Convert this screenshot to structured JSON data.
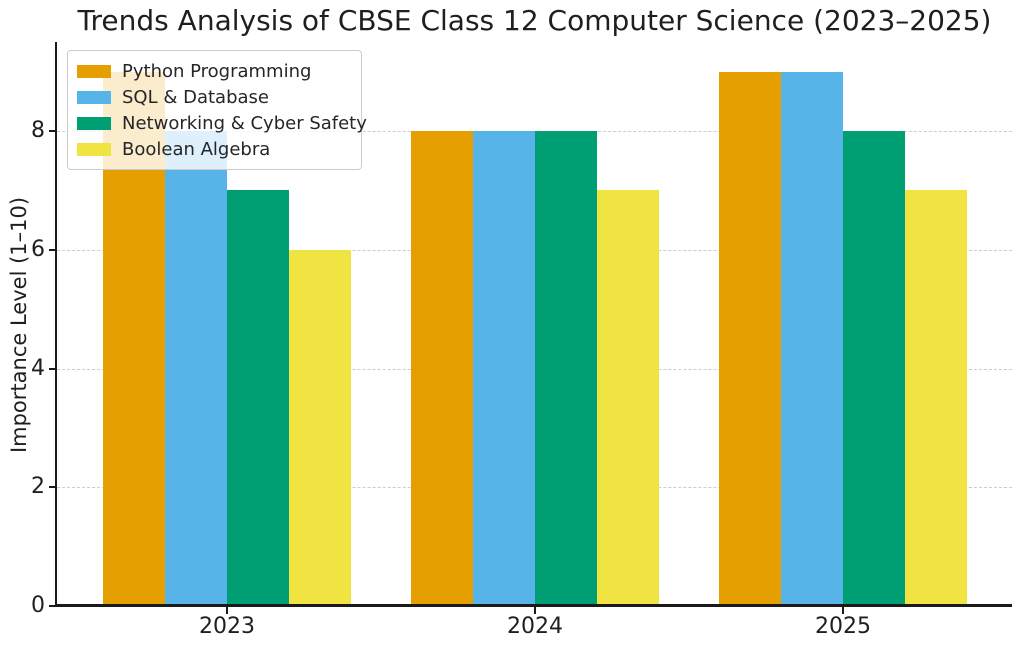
{
  "chart_data": {
    "type": "bar",
    "title": "Trends Analysis of CBSE Class 12 Computer Science (2023–2025)",
    "xlabel": "",
    "ylabel": "Importance Level (1–10)",
    "categories": [
      "2023",
      "2024",
      "2025"
    ],
    "series": [
      {
        "name": "Python Programming",
        "color": "#E69F00",
        "values": [
          9,
          8,
          9
        ]
      },
      {
        "name": "SQL & Database",
        "color": "#56B4E9",
        "values": [
          8,
          8,
          9
        ]
      },
      {
        "name": "Networking & Cyber Safety",
        "color": "#009E73",
        "values": [
          7,
          8,
          8
        ]
      },
      {
        "name": "Boolean Algebra",
        "color": "#F0E442",
        "values": [
          6,
          7,
          7
        ]
      }
    ],
    "ylim": [
      0,
      9.45
    ],
    "yticks": [
      0,
      2,
      4,
      6,
      8
    ],
    "grid": "horizontal-dashed",
    "grid_color": "#cccccc",
    "axis_color": "#1a1a1a",
    "legend_position": "upper-left"
  }
}
